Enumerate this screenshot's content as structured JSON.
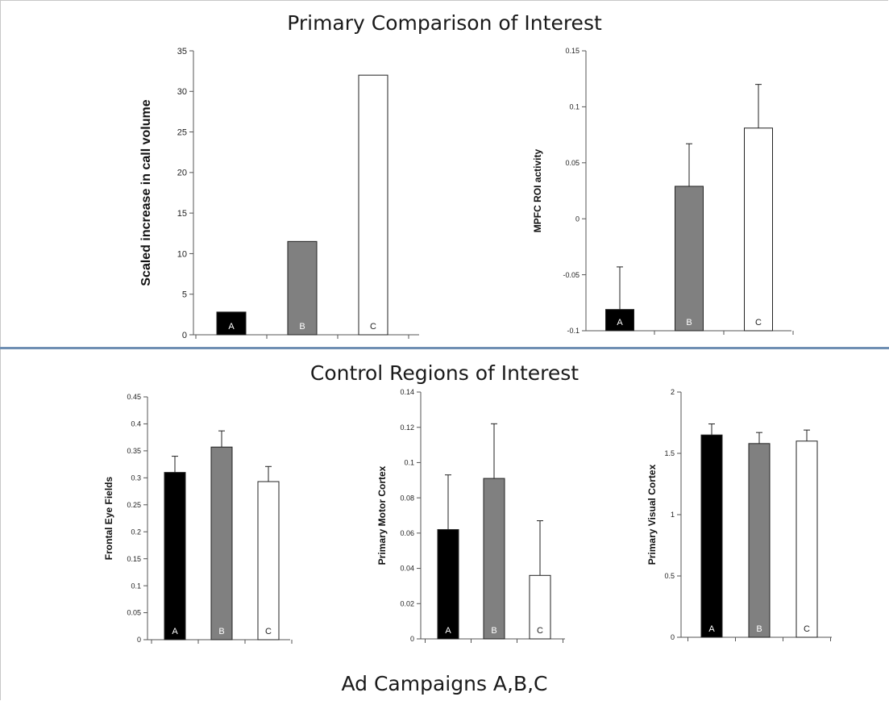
{
  "top_heading": "Primary Comparison of Interest",
  "bottom_heading": "Control Regions of Interest",
  "footer_heading": "Ad Campaigns A,B,C",
  "colors": {
    "A": "#000000",
    "B": "#808080",
    "C": "#ffffff",
    "divider": "#6f8fb3"
  },
  "chart_data": [
    {
      "type": "bar",
      "title": "",
      "xlabel": "",
      "ylabel": "Scaled increase in call volume",
      "categories": [
        "A",
        "B",
        "C"
      ],
      "values": [
        2.8,
        11.5,
        32
      ],
      "errors": null,
      "ylim": [
        0,
        35
      ],
      "yticks": [
        "0",
        "5",
        "10",
        "15",
        "20",
        "25",
        "30",
        "35"
      ],
      "grid": false
    },
    {
      "type": "bar",
      "title": "",
      "xlabel": "",
      "ylabel": "MPFC ROI activity",
      "categories": [
        "A",
        "B",
        "C"
      ],
      "values": [
        -0.081,
        0.029,
        0.081
      ],
      "errors": [
        0.038,
        0.038,
        0.039
      ],
      "ylim": [
        -0.1,
        0.15
      ],
      "yticks": [
        "-0.1",
        "-0.05",
        "0",
        "0.05",
        "0.1",
        "0.15"
      ],
      "grid": false
    },
    {
      "type": "bar",
      "title": "",
      "xlabel": "",
      "ylabel": "Frontal Eye Fields",
      "categories": [
        "A",
        "B",
        "C"
      ],
      "values": [
        0.31,
        0.357,
        0.293
      ],
      "errors": [
        0.03,
        0.03,
        0.028
      ],
      "ylim": [
        0,
        0.45
      ],
      "yticks": [
        "0",
        "0.05",
        "0.1",
        "0.15",
        "0.2",
        "0.25",
        "0.3",
        "0.35",
        "0.4",
        "0.45"
      ],
      "grid": false
    },
    {
      "type": "bar",
      "title": "",
      "xlabel": "",
      "ylabel": "Primary Motor Cortex",
      "categories": [
        "A",
        "B",
        "C"
      ],
      "values": [
        0.062,
        0.091,
        0.036
      ],
      "errors": [
        0.031,
        0.031,
        0.031
      ],
      "ylim": [
        0,
        0.14
      ],
      "yticks": [
        "0",
        "0.02",
        "0.04",
        "0.06",
        "0.08",
        "0.1",
        "0.12",
        "0.14"
      ],
      "grid": false
    },
    {
      "type": "bar",
      "title": "",
      "xlabel": "",
      "ylabel": "Primary Visual Cortex",
      "categories": [
        "A",
        "B",
        "C"
      ],
      "values": [
        1.65,
        1.58,
        1.6
      ],
      "errors": [
        0.09,
        0.09,
        0.09
      ],
      "ylim": [
        0,
        2
      ],
      "yticks": [
        "0",
        "0.5",
        "1",
        "1.5",
        "2"
      ],
      "grid": false
    }
  ]
}
